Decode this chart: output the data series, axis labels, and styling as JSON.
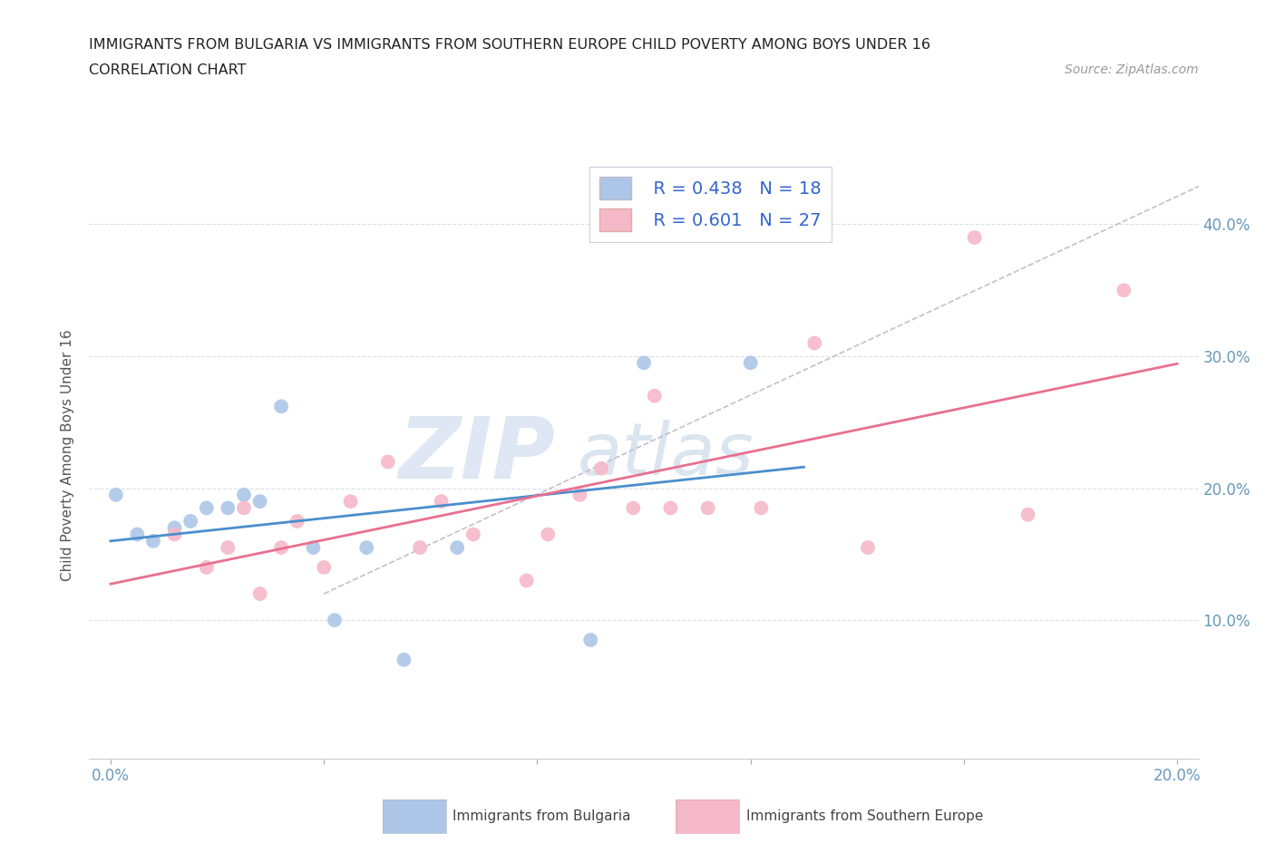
{
  "title_line1": "IMMIGRANTS FROM BULGARIA VS IMMIGRANTS FROM SOUTHERN EUROPE CHILD POVERTY AMONG BOYS UNDER 16",
  "title_line2": "CORRELATION CHART",
  "source_text": "Source: ZipAtlas.com",
  "ylabel": "Child Poverty Among Boys Under 16",
  "xlim": [
    0.0,
    0.2
  ],
  "ylim": [
    0.0,
    0.45
  ],
  "legend_r_bulgaria": "R = 0.438",
  "legend_n_bulgaria": "N = 18",
  "legend_r_southern": "R = 0.601",
  "legend_n_southern": "N = 27",
  "color_bulgaria": "#adc6e8",
  "color_southern": "#f5b8c8",
  "color_trendline_bulgaria": "#4a8fcc",
  "color_trendline_southern": "#e87090",
  "color_trendline_diagonal": "#c0c0d0",
  "watermark_zip_color": "#c5d5e8",
  "watermark_atlas_color": "#b8ccdc",
  "tick_color": "#6699bb",
  "bulgaria_x": [
    0.001,
    0.005,
    0.008,
    0.012,
    0.015,
    0.018,
    0.022,
    0.025,
    0.028,
    0.032,
    0.038,
    0.042,
    0.048,
    0.055,
    0.065,
    0.09,
    0.1,
    0.12
  ],
  "bulgaria_y": [
    0.195,
    0.165,
    0.16,
    0.17,
    0.175,
    0.185,
    0.185,
    0.195,
    0.19,
    0.262,
    0.155,
    0.1,
    0.155,
    0.07,
    0.155,
    0.085,
    0.295,
    0.295
  ],
  "southern_x": [
    0.012,
    0.018,
    0.022,
    0.025,
    0.028,
    0.032,
    0.035,
    0.04,
    0.045,
    0.052,
    0.058,
    0.062,
    0.068,
    0.078,
    0.082,
    0.088,
    0.092,
    0.098,
    0.102,
    0.105,
    0.112,
    0.122,
    0.132,
    0.142,
    0.162,
    0.172,
    0.19
  ],
  "southern_y": [
    0.165,
    0.14,
    0.155,
    0.185,
    0.12,
    0.155,
    0.175,
    0.14,
    0.19,
    0.22,
    0.155,
    0.19,
    0.165,
    0.13,
    0.165,
    0.195,
    0.215,
    0.185,
    0.27,
    0.185,
    0.185,
    0.185,
    0.31,
    0.155,
    0.39,
    0.18,
    0.35
  ],
  "marker_size": 130
}
